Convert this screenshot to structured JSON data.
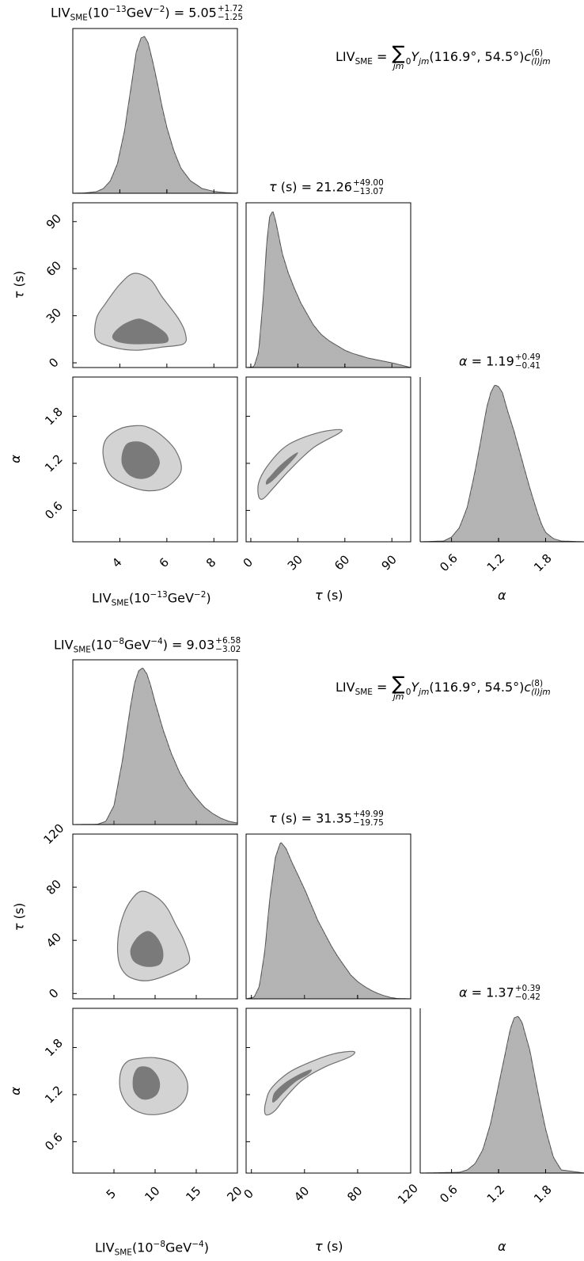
{
  "figures": [
    {
      "eq_order": "(6)",
      "axis_labels": {
        "liv_prefix": "LIV",
        "liv_sub": "SME",
        "liv_unit_pre": "(10",
        "liv_exp": "−13",
        "liv_unit_mid": "GeV",
        "liv_unit_exp": "−2",
        "liv_unit_post": ")",
        "tau": "τ",
        "tau_unit": " (s)",
        "alpha": "α"
      },
      "titles": {
        "liv": {
          "value": "5.05",
          "plus": "+1.72",
          "minus": "−1.25"
        },
        "tau": {
          "value": "21.26",
          "plus": "+49.00",
          "minus": "−13.07"
        },
        "alpha": {
          "value": "1.19",
          "plus": "+0.49",
          "minus": "−0.41"
        }
      },
      "ticks": {
        "liv": [
          "4",
          "6",
          "8"
        ],
        "tau": [
          "0",
          "30",
          "60",
          "90"
        ],
        "alpha": [
          "0.6",
          "1.2",
          "1.8"
        ]
      }
    },
    {
      "eq_order": "(8)",
      "axis_labels": {
        "liv_prefix": "LIV",
        "liv_sub": "SME",
        "liv_unit_pre": "(10",
        "liv_exp": "−8",
        "liv_unit_mid": "GeV",
        "liv_unit_exp": "−4",
        "liv_unit_post": ")",
        "tau": "τ",
        "tau_unit": " (s)",
        "alpha": "α"
      },
      "titles": {
        "liv": {
          "value": "9.03",
          "plus": "+6.58",
          "minus": "−3.02"
        },
        "tau": {
          "value": "31.35",
          "plus": "+49.99",
          "minus": "−19.75"
        },
        "alpha": {
          "value": "1.37",
          "plus": "+0.39",
          "minus": "−0.42"
        }
      },
      "ticks": {
        "liv": [
          "5",
          "10",
          "15",
          "20"
        ],
        "tau": [
          "0",
          "40",
          "80",
          "120"
        ],
        "alpha": [
          "0.6",
          "1.2",
          "1.8"
        ]
      }
    }
  ],
  "equation": {
    "lhs": "LIV",
    "lhs_sub": "SME",
    "eq": " = ",
    "sigma": "∑",
    "sigma_sub": "jm",
    "sigma_sub0": "0",
    "Y": "Y",
    "Y_sub": "jm",
    "args": "(116.9°, 54.5°)",
    "c": "c",
    "c_sub": "(I)jm"
  },
  "colors": {
    "inner_contour": "#7a7a7a",
    "outer_contour": "#d3d3d3",
    "contour_edge": "#707070",
    "hist_fill": "#d8d8d8",
    "hist_bar": "#707070"
  },
  "chart_data": [
    {
      "type": "corner",
      "parameters": [
        "LIV_SME (10^-13 GeV^-2)",
        "τ (s)",
        "α"
      ],
      "ranges": {
        "liv": [
          2.0,
          9.0
        ],
        "tau": [
          -3,
          102
        ],
        "alpha": [
          0.2,
          2.3
        ]
      },
      "median": {
        "liv": 5.05,
        "tau": 21.26,
        "alpha": 1.19
      },
      "errors": {
        "liv": [
          1.72,
          1.25
        ],
        "tau": [
          49.0,
          13.07
        ],
        "alpha": [
          0.49,
          0.41
        ]
      },
      "marginals": {
        "liv": {
          "x": [
            2.0,
            2.5,
            3.0,
            3.3,
            3.6,
            3.9,
            4.2,
            4.5,
            4.7,
            4.9,
            5.05,
            5.2,
            5.4,
            5.6,
            5.8,
            6.0,
            6.3,
            6.6,
            7.0,
            7.5,
            8.0,
            8.5,
            9.0
          ],
          "density": [
            0,
            0.002,
            0.01,
            0.03,
            0.08,
            0.19,
            0.4,
            0.7,
            0.9,
            0.99,
            1.0,
            0.96,
            0.84,
            0.7,
            0.55,
            0.42,
            0.27,
            0.16,
            0.08,
            0.03,
            0.012,
            0.004,
            0
          ]
        },
        "tau": {
          "x": [
            -3,
            2,
            5,
            8,
            10,
            12,
            14,
            16,
            18,
            20,
            24,
            28,
            32,
            36,
            40,
            45,
            50,
            55,
            60,
            65,
            70,
            75,
            80,
            85,
            90,
            95,
            102
          ],
          "density": [
            0,
            0.005,
            0.1,
            0.45,
            0.78,
            0.96,
            1.0,
            0.93,
            0.83,
            0.73,
            0.6,
            0.5,
            0.41,
            0.34,
            0.27,
            0.21,
            0.17,
            0.14,
            0.11,
            0.09,
            0.075,
            0.06,
            0.05,
            0.04,
            0.03,
            0.018,
            0
          ]
        },
        "alpha": {
          "x": [
            0.2,
            0.5,
            0.6,
            0.7,
            0.8,
            0.9,
            1.0,
            1.05,
            1.1,
            1.15,
            1.2,
            1.25,
            1.3,
            1.4,
            1.5,
            1.6,
            1.7,
            1.75,
            1.8,
            1.9,
            2.0,
            2.3
          ],
          "density": [
            0,
            0.005,
            0.03,
            0.09,
            0.22,
            0.45,
            0.72,
            0.86,
            0.95,
            1.0,
            0.99,
            0.95,
            0.86,
            0.7,
            0.52,
            0.34,
            0.18,
            0.11,
            0.06,
            0.02,
            0.005,
            0
          ]
        }
      },
      "contours": {
        "liv_tau": {
          "outer": [
            [
              4.6,
              57
            ],
            [
              5.3,
              53
            ],
            [
              5.8,
              42
            ],
            [
              6.5,
              28
            ],
            [
              6.8,
              18
            ],
            [
              6.7,
              12
            ],
            [
              5.8,
              10
            ],
            [
              4.7,
              8
            ],
            [
              3.7,
              10
            ],
            [
              3.0,
              15
            ],
            [
              3.0,
              28
            ],
            [
              3.4,
              38
            ],
            [
              4.0,
              50
            ]
          ],
          "inner": [
            [
              4.7,
              28
            ],
            [
              5.1,
              27
            ],
            [
              5.6,
              23
            ],
            [
              6.0,
              18
            ],
            [
              6.0,
              13
            ],
            [
              5.2,
              12
            ],
            [
              4.4,
              12
            ],
            [
              3.8,
              14
            ],
            [
              3.7,
              18
            ],
            [
              4.1,
              24
            ]
          ]
        },
        "liv_alpha": {
          "outer": [
            [
              4.7,
              1.68
            ],
            [
              5.2,
              1.66
            ],
            [
              5.8,
              1.55
            ],
            [
              6.4,
              1.35
            ],
            [
              6.6,
              1.1
            ],
            [
              6.0,
              0.9
            ],
            [
              5.2,
              0.85
            ],
            [
              4.3,
              0.92
            ],
            [
              3.6,
              1.05
            ],
            [
              3.3,
              1.28
            ],
            [
              3.4,
              1.5
            ],
            [
              4.0,
              1.64
            ]
          ],
          "inner": [
            [
              4.7,
              1.48
            ],
            [
              5.1,
              1.45
            ],
            [
              5.5,
              1.35
            ],
            [
              5.7,
              1.2
            ],
            [
              5.4,
              1.05
            ],
            [
              4.9,
              1.0
            ],
            [
              4.4,
              1.05
            ],
            [
              4.1,
              1.18
            ],
            [
              4.1,
              1.33
            ],
            [
              4.3,
              1.45
            ]
          ]
        },
        "tau_alpha": {
          "outer": [
            [
              10,
              1.15
            ],
            [
              20,
              1.38
            ],
            [
              30,
              1.5
            ],
            [
              45,
              1.6
            ],
            [
              57,
              1.63
            ],
            [
              56,
              1.58
            ],
            [
              40,
              1.4
            ],
            [
              25,
              1.12
            ],
            [
              15,
              0.9
            ],
            [
              8,
              0.75
            ],
            [
              5,
              0.78
            ],
            [
              5,
              0.95
            ]
          ],
          "inner": [
            [
              13,
              1.05
            ],
            [
              18,
              1.16
            ],
            [
              25,
              1.28
            ],
            [
              30,
              1.34
            ],
            [
              28,
              1.27
            ],
            [
              20,
              1.1
            ],
            [
              14,
              0.98
            ],
            [
              10,
              0.93
            ],
            [
              10,
              0.98
            ]
          ]
        }
      }
    },
    {
      "type": "corner",
      "parameters": [
        "LIV_SME (10^-8 GeV^-4)",
        "τ (s)",
        "α"
      ],
      "ranges": {
        "liv": [
          0,
          20
        ],
        "tau": [
          -4,
          120
        ],
        "alpha": [
          0.2,
          2.3
        ]
      },
      "median": {
        "liv": 9.03,
        "tau": 31.35,
        "alpha": 1.37
      },
      "errors": {
        "liv": [
          6.58,
          3.02
        ],
        "tau": [
          49.99,
          19.75
        ],
        "alpha": [
          0.39,
          0.42
        ]
      },
      "marginals": {
        "liv": {
          "x": [
            0,
            3,
            4,
            5,
            6,
            7,
            7.5,
            8,
            8.5,
            9,
            9.5,
            10,
            11,
            12,
            13,
            14,
            15,
            16,
            17,
            18,
            19,
            20
          ],
          "density": [
            0,
            0.002,
            0.02,
            0.12,
            0.4,
            0.75,
            0.9,
            0.98,
            1.0,
            0.96,
            0.88,
            0.78,
            0.6,
            0.45,
            0.33,
            0.24,
            0.17,
            0.11,
            0.07,
            0.04,
            0.02,
            0.01
          ]
        },
        "tau": {
          "x": [
            -4,
            2,
            6,
            10,
            14,
            18,
            22,
            26,
            30,
            35,
            40,
            45,
            50,
            55,
            60,
            65,
            70,
            75,
            80,
            85,
            90,
            95,
            100,
            105,
            110,
            120
          ],
          "density": [
            0,
            0.01,
            0.08,
            0.3,
            0.65,
            0.9,
            1.0,
            0.96,
            0.88,
            0.79,
            0.7,
            0.6,
            0.5,
            0.42,
            0.34,
            0.27,
            0.21,
            0.15,
            0.11,
            0.08,
            0.055,
            0.035,
            0.02,
            0.008,
            0.002,
            0
          ]
        },
        "alpha": {
          "x": [
            0.2,
            0.7,
            0.8,
            0.9,
            1.0,
            1.1,
            1.2,
            1.3,
            1.35,
            1.4,
            1.45,
            1.5,
            1.6,
            1.7,
            1.8,
            1.9,
            2.0,
            2.3
          ],
          "density": [
            0,
            0.005,
            0.02,
            0.06,
            0.15,
            0.32,
            0.56,
            0.8,
            0.92,
            0.99,
            1.0,
            0.96,
            0.78,
            0.52,
            0.28,
            0.1,
            0.02,
            0
          ]
        }
      },
      "contours": {
        "liv_tau": {
          "outer": [
            [
              8.5,
              77
            ],
            [
              10.3,
              72
            ],
            [
              11.5,
              64
            ],
            [
              12.5,
              52
            ],
            [
              13.5,
              40
            ],
            [
              14.2,
              26
            ],
            [
              13.5,
              20
            ],
            [
              11.5,
              14
            ],
            [
              9.5,
              10
            ],
            [
              8,
              10
            ],
            [
              6.5,
              14
            ],
            [
              5.6,
              24
            ],
            [
              5.5,
              42
            ],
            [
              6.2,
              60
            ],
            [
              7.3,
              72
            ]
          ],
          "inner": [
            [
              9,
              47
            ],
            [
              10,
              44
            ],
            [
              10.8,
              36
            ],
            [
              11,
              28
            ],
            [
              10.6,
              22
            ],
            [
              9.5,
              20
            ],
            [
              8.3,
              21
            ],
            [
              7.3,
              25
            ],
            [
              7,
              33
            ],
            [
              7.8,
              42
            ]
          ]
        },
        "liv_alpha": {
          "outer": [
            [
              8,
              1.66
            ],
            [
              10,
              1.67
            ],
            [
              12.3,
              1.6
            ],
            [
              13.8,
              1.4
            ],
            [
              13.8,
              1.18
            ],
            [
              12.5,
              1.02
            ],
            [
              10.5,
              0.95
            ],
            [
              8.5,
              0.96
            ],
            [
              6.8,
              1.06
            ],
            [
              5.8,
              1.25
            ],
            [
              5.8,
              1.48
            ],
            [
              6.6,
              1.62
            ]
          ],
          "inner": [
            [
              8.4,
              1.56
            ],
            [
              9.4,
              1.54
            ],
            [
              10.3,
              1.44
            ],
            [
              10.6,
              1.32
            ],
            [
              10.2,
              1.2
            ],
            [
              9.2,
              1.14
            ],
            [
              8.2,
              1.15
            ],
            [
              7.4,
              1.25
            ],
            [
              7.3,
              1.4
            ],
            [
              7.7,
              1.52
            ]
          ]
        },
        "tau_alpha": {
          "outer": [
            [
              15,
              1.28
            ],
            [
              28,
              1.48
            ],
            [
              45,
              1.62
            ],
            [
              62,
              1.72
            ],
            [
              77,
              1.75
            ],
            [
              74,
              1.68
            ],
            [
              55,
              1.55
            ],
            [
              38,
              1.38
            ],
            [
              25,
              1.15
            ],
            [
              18,
              1.0
            ],
            [
              12,
              0.94
            ],
            [
              10,
              0.98
            ],
            [
              11,
              1.12
            ]
          ],
          "inner": [
            [
              18,
              1.24
            ],
            [
              26,
              1.36
            ],
            [
              36,
              1.46
            ],
            [
              45,
              1.52
            ],
            [
              43,
              1.46
            ],
            [
              33,
              1.36
            ],
            [
              24,
              1.22
            ],
            [
              19,
              1.13
            ],
            [
              16,
              1.1
            ],
            [
              16,
              1.16
            ]
          ]
        }
      }
    }
  ]
}
